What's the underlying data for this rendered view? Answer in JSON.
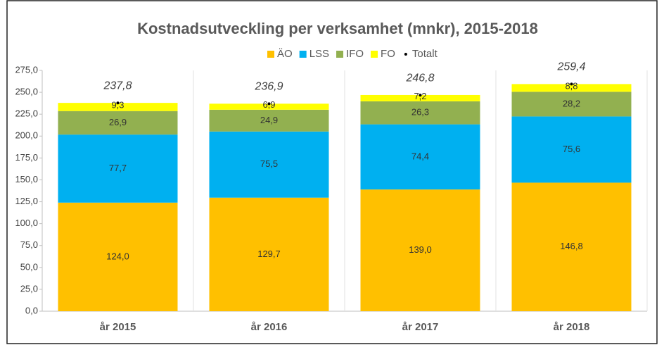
{
  "chart_data": {
    "type": "stacked_bar",
    "title": "Kostnadsutveckling  per verksamhet (mnkr), 2015-2018",
    "categories": [
      "år 2015",
      "år 2016",
      "år 2017",
      "år 2018"
    ],
    "series": [
      {
        "name": "ÄO",
        "color": "#ffc000",
        "values": [
          124.0,
          129.7,
          139.0,
          146.8
        ],
        "value_labels": [
          "124,0",
          "129,7",
          "139,0",
          "146,8"
        ]
      },
      {
        "name": "LSS",
        "color": "#00b0f0",
        "values": [
          77.7,
          75.5,
          74.4,
          75.6
        ],
        "value_labels": [
          "77,7",
          "75,5",
          "74,4",
          "75,6"
        ]
      },
      {
        "name": "IFO",
        "color": "#92b050",
        "values": [
          26.9,
          24.9,
          26.3,
          28.2
        ],
        "value_labels": [
          "26,9",
          "24,9",
          "26,3",
          "28,2"
        ]
      },
      {
        "name": "FO",
        "color": "#ffff00",
        "values": [
          9.3,
          6.9,
          7.2,
          8.8
        ],
        "value_labels": [
          "9,3",
          "6,9",
          "7,2",
          "8,8"
        ]
      },
      {
        "name": "Totalt",
        "color": "#000000",
        "type": "marker",
        "values": [
          237.8,
          236.9,
          246.8,
          259.4
        ],
        "value_labels": [
          "237,8",
          "236,9",
          "246,8",
          "259,4"
        ]
      }
    ],
    "ylim": [
      0,
      275
    ],
    "yticks": [
      {
        "value": 0,
        "label": "0,0"
      },
      {
        "value": 25,
        "label": "25,0"
      },
      {
        "value": 50,
        "label": "50,0"
      },
      {
        "value": 75,
        "label": "75,0"
      },
      {
        "value": 100,
        "label": "100,0"
      },
      {
        "value": 125,
        "label": "125,0"
      },
      {
        "value": 150,
        "label": "150,0"
      },
      {
        "value": 175,
        "label": "175,0"
      },
      {
        "value": 200,
        "label": "200,0"
      },
      {
        "value": 225,
        "label": "225,0"
      },
      {
        "value": 250,
        "label": "250,0"
      },
      {
        "value": 275,
        "label": "275,0"
      }
    ],
    "legend": "top"
  }
}
